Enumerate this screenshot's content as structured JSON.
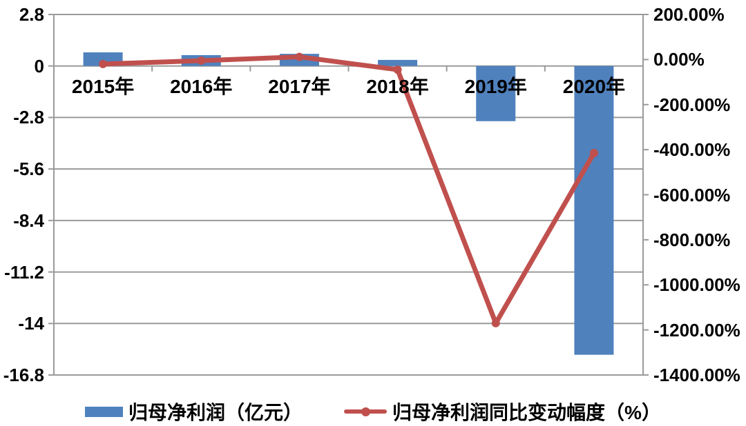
{
  "chart_data": {
    "type": "bar",
    "subtype": "combo-bar-line-dual-axis",
    "title": "",
    "categories": [
      "2015年",
      "2016年",
      "2017年",
      "2018年",
      "2019年",
      "2020年"
    ],
    "series": [
      {
        "name": "归母净利润（亿元）",
        "type": "bar",
        "axis": "left",
        "color": "#4F81BD",
        "values": [
          0.74,
          0.59,
          0.66,
          0.33,
          -3.0,
          -15.7
        ]
      },
      {
        "name": "归母净利润同比变动幅度（%）",
        "type": "line",
        "axis": "right",
        "color": "#C0504D",
        "values": [
          -20,
          -5,
          12,
          -45,
          -1170,
          -415
        ]
      }
    ],
    "left_axis": {
      "min": -16.8,
      "max": 2.8,
      "step": -2.8,
      "ticks": [
        "2.8",
        "0",
        "-2.8",
        "-5.6",
        "-8.4",
        "-11.2",
        "-14",
        "-16.8"
      ],
      "tick_values": [
        2.8,
        0,
        -2.8,
        -5.6,
        -8.4,
        -11.2,
        -14,
        -16.8
      ]
    },
    "right_axis": {
      "min": -1400,
      "max": 200,
      "step": -200,
      "ticks": [
        "200.00%",
        "0.00%",
        "-200.00%",
        "-400.00%",
        "-600.00%",
        "-800.00%",
        "-1000.00%",
        "-1200.00%",
        "-1400.00%"
      ],
      "tick_values": [
        200,
        0,
        -200,
        -400,
        -600,
        -800,
        -1000,
        -1200,
        -1400
      ]
    },
    "grid": true,
    "legend_position": "bottom"
  },
  "colors": {
    "bar": "#4F81BD",
    "line": "#C0504D",
    "grid": "#9a9a9a",
    "text": "#000000",
    "background": "#ffffff"
  }
}
